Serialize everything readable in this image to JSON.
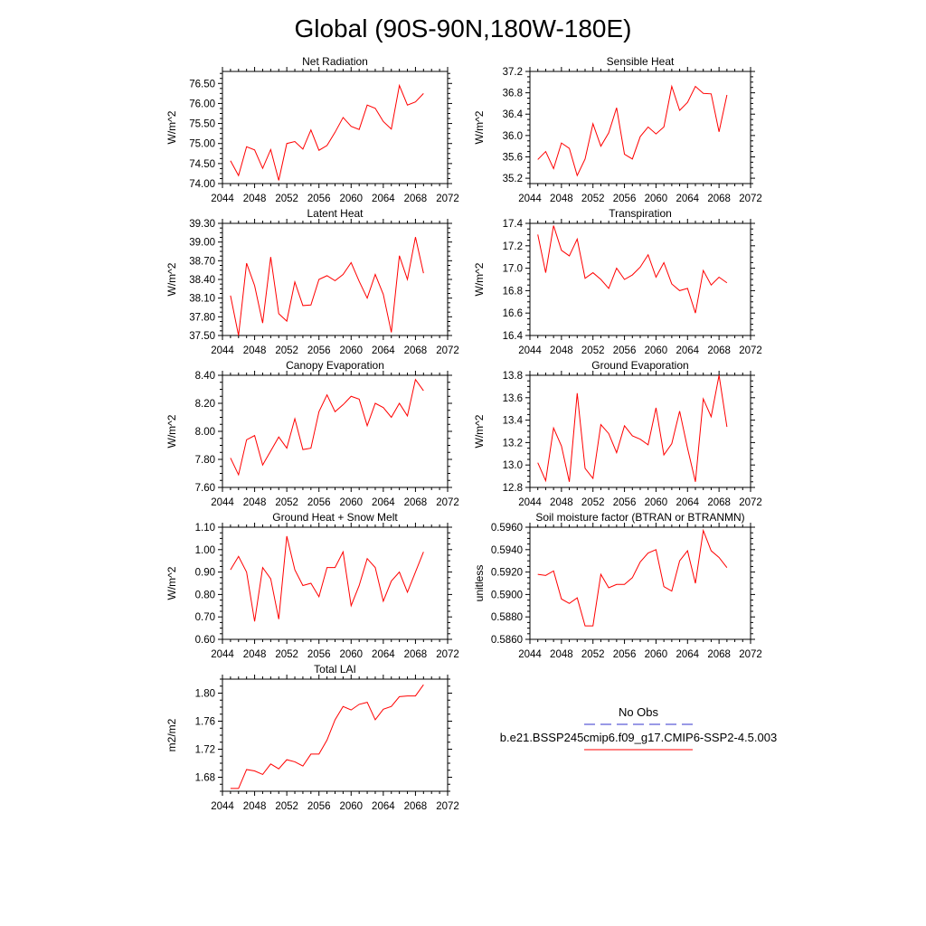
{
  "figure_title": "Global (90S-90N,180W-180E)",
  "colors": {
    "model_line": "#ff0000",
    "obs_line": "#3333cc",
    "axes": "#000000"
  },
  "legend": {
    "obs_label": "No Obs",
    "model_label": "b.e21.BSSP245cmip6.f09_g17.CMIP6-SSP2-4.5.003"
  },
  "chart_data": [
    {
      "id": "net-radiation",
      "type": "line",
      "title": "Net Radiation",
      "ylabel": "W/m^2",
      "xlim": [
        2044,
        2072
      ],
      "xticks": [
        2044,
        2048,
        2052,
        2056,
        2060,
        2064,
        2068,
        2072
      ],
      "ylim": [
        74.0,
        76.8
      ],
      "yticks": [
        74.0,
        74.5,
        75.0,
        75.5,
        76.0,
        76.5
      ],
      "ydec": 2,
      "x_start": 2045,
      "values": [
        74.57,
        74.2,
        74.92,
        74.84,
        74.38,
        74.85,
        74.08,
        75.0,
        75.05,
        74.86,
        75.34,
        74.83,
        74.95,
        75.28,
        75.65,
        75.43,
        75.35,
        75.96,
        75.88,
        75.55,
        75.36,
        76.45,
        75.96,
        76.04,
        76.25
      ]
    },
    {
      "id": "sensible-heat",
      "type": "line",
      "title": "Sensible Heat",
      "ylabel": "W/m^2",
      "xlim": [
        2044,
        2072
      ],
      "xticks": [
        2044,
        2048,
        2052,
        2056,
        2060,
        2064,
        2068,
        2072
      ],
      "ylim": [
        35.1,
        37.2
      ],
      "yticks": [
        35.2,
        35.6,
        36.0,
        36.4,
        36.8,
        37.2
      ],
      "ydec": 1,
      "x_start": 2045,
      "values": [
        35.55,
        35.7,
        35.38,
        35.86,
        35.76,
        35.25,
        35.56,
        36.22,
        35.8,
        36.05,
        36.52,
        35.65,
        35.56,
        35.98,
        36.16,
        36.03,
        36.16,
        36.92,
        36.47,
        36.62,
        36.92,
        36.79,
        36.78,
        36.07,
        36.76
      ]
    },
    {
      "id": "latent-heat",
      "type": "line",
      "title": "Latent Heat",
      "ylabel": "W/m^2",
      "xlim": [
        2044,
        2072
      ],
      "xticks": [
        2044,
        2048,
        2052,
        2056,
        2060,
        2064,
        2068,
        2072
      ],
      "ylim": [
        37.5,
        39.3
      ],
      "yticks": [
        37.5,
        37.8,
        38.1,
        38.4,
        38.7,
        39.0,
        39.3
      ],
      "ydec": 2,
      "x_start": 2045,
      "values": [
        38.14,
        37.5,
        38.66,
        38.3,
        37.7,
        38.76,
        37.85,
        37.73,
        38.36,
        37.98,
        37.99,
        38.4,
        38.46,
        38.38,
        38.48,
        38.67,
        38.37,
        38.1,
        38.48,
        38.16,
        37.55,
        38.78,
        38.4,
        39.08,
        38.5
      ]
    },
    {
      "id": "transpiration",
      "type": "line",
      "title": "Transpiration",
      "ylabel": "W/m^2",
      "xlim": [
        2044,
        2072
      ],
      "xticks": [
        2044,
        2048,
        2052,
        2056,
        2060,
        2064,
        2068,
        2072
      ],
      "ylim": [
        16.4,
        17.4
      ],
      "yticks": [
        16.4,
        16.6,
        16.8,
        17.0,
        17.2,
        17.4
      ],
      "ydec": 1,
      "x_start": 2045,
      "values": [
        17.3,
        16.96,
        17.38,
        17.16,
        17.11,
        17.26,
        16.91,
        16.96,
        16.9,
        16.82,
        17.0,
        16.9,
        16.94,
        17.01,
        17.12,
        16.92,
        17.05,
        16.86,
        16.8,
        16.82,
        16.6,
        16.98,
        16.85,
        16.92,
        16.87
      ]
    },
    {
      "id": "canopy-evaporation",
      "type": "line",
      "title": "Canopy Evaporation",
      "ylabel": "W/m^2",
      "xlim": [
        2044,
        2072
      ],
      "xticks": [
        2044,
        2048,
        2052,
        2056,
        2060,
        2064,
        2068,
        2072
      ],
      "ylim": [
        7.6,
        8.4
      ],
      "yticks": [
        7.6,
        7.8,
        8.0,
        8.2,
        8.4
      ],
      "ydec": 2,
      "x_start": 2045,
      "values": [
        7.81,
        7.69,
        7.94,
        7.97,
        7.76,
        7.86,
        7.96,
        7.88,
        8.09,
        7.87,
        7.88,
        8.14,
        8.26,
        8.14,
        8.19,
        8.25,
        8.23,
        8.04,
        8.2,
        8.17,
        8.1,
        8.2,
        8.11,
        8.37,
        8.29
      ]
    },
    {
      "id": "ground-evaporation",
      "type": "line",
      "title": "Ground Evaporation",
      "ylabel": "W/m^2",
      "xlim": [
        2044,
        2072
      ],
      "xticks": [
        2044,
        2048,
        2052,
        2056,
        2060,
        2064,
        2068,
        2072
      ],
      "ylim": [
        12.8,
        13.8
      ],
      "yticks": [
        12.8,
        13.0,
        13.2,
        13.4,
        13.6,
        13.8
      ],
      "ydec": 1,
      "x_start": 2045,
      "values": [
        13.02,
        12.86,
        13.33,
        13.17,
        12.85,
        13.64,
        12.97,
        12.88,
        13.36,
        13.28,
        13.11,
        13.35,
        13.26,
        13.23,
        13.18,
        13.51,
        13.09,
        13.19,
        13.48,
        13.15,
        12.85,
        13.59,
        13.43,
        13.8,
        13.34
      ]
    },
    {
      "id": "ground-heat-snow-melt",
      "type": "line",
      "title": "Ground Heat + Snow Melt",
      "ylabel": "W/m^2",
      "xlim": [
        2044,
        2072
      ],
      "xticks": [
        2044,
        2048,
        2052,
        2056,
        2060,
        2064,
        2068,
        2072
      ],
      "ylim": [
        0.6,
        1.1
      ],
      "yticks": [
        0.6,
        0.7,
        0.8,
        0.9,
        1.0,
        1.1
      ],
      "ydec": 2,
      "x_start": 2045,
      "values": [
        0.91,
        0.97,
        0.9,
        0.68,
        0.92,
        0.87,
        0.69,
        1.06,
        0.91,
        0.84,
        0.85,
        0.79,
        0.92,
        0.92,
        0.99,
        0.75,
        0.84,
        0.96,
        0.92,
        0.77,
        0.86,
        0.9,
        0.81,
        0.9,
        0.99
      ]
    },
    {
      "id": "soil-moisture-factor",
      "type": "line",
      "title": "Soil moisture factor (BTRAN or BTRANMN)",
      "ylabel": "unitless",
      "xlim": [
        2044,
        2072
      ],
      "xticks": [
        2044,
        2048,
        2052,
        2056,
        2060,
        2064,
        2068,
        2072
      ],
      "ylim": [
        0.586,
        0.596
      ],
      "yticks": [
        0.586,
        0.588,
        0.59,
        0.592,
        0.594,
        0.596
      ],
      "ydec": 4,
      "x_start": 2045,
      "values": [
        0.5918,
        0.5917,
        0.5921,
        0.5896,
        0.5892,
        0.5897,
        0.5872,
        0.5872,
        0.5918,
        0.5906,
        0.5909,
        0.5909,
        0.5915,
        0.5929,
        0.5937,
        0.594,
        0.5907,
        0.5903,
        0.593,
        0.5939,
        0.591,
        0.5957,
        0.5939,
        0.5933,
        0.5924
      ]
    },
    {
      "id": "total-lai",
      "type": "line",
      "title": "Total LAI",
      "ylabel": "m2/m2",
      "xlim": [
        2044,
        2072
      ],
      "xticks": [
        2044,
        2048,
        2052,
        2056,
        2060,
        2064,
        2068,
        2072
      ],
      "ylim": [
        1.66,
        1.82
      ],
      "yticks": [
        1.68,
        1.72,
        1.76,
        1.8
      ],
      "ydec": 2,
      "x_start": 2045,
      "values": [
        1.664,
        1.664,
        1.691,
        1.689,
        1.684,
        1.699,
        1.692,
        1.705,
        1.702,
        1.696,
        1.713,
        1.713,
        1.733,
        1.762,
        1.781,
        1.776,
        1.784,
        1.787,
        1.762,
        1.777,
        1.781,
        1.795,
        1.796,
        1.796,
        1.812
      ]
    }
  ]
}
